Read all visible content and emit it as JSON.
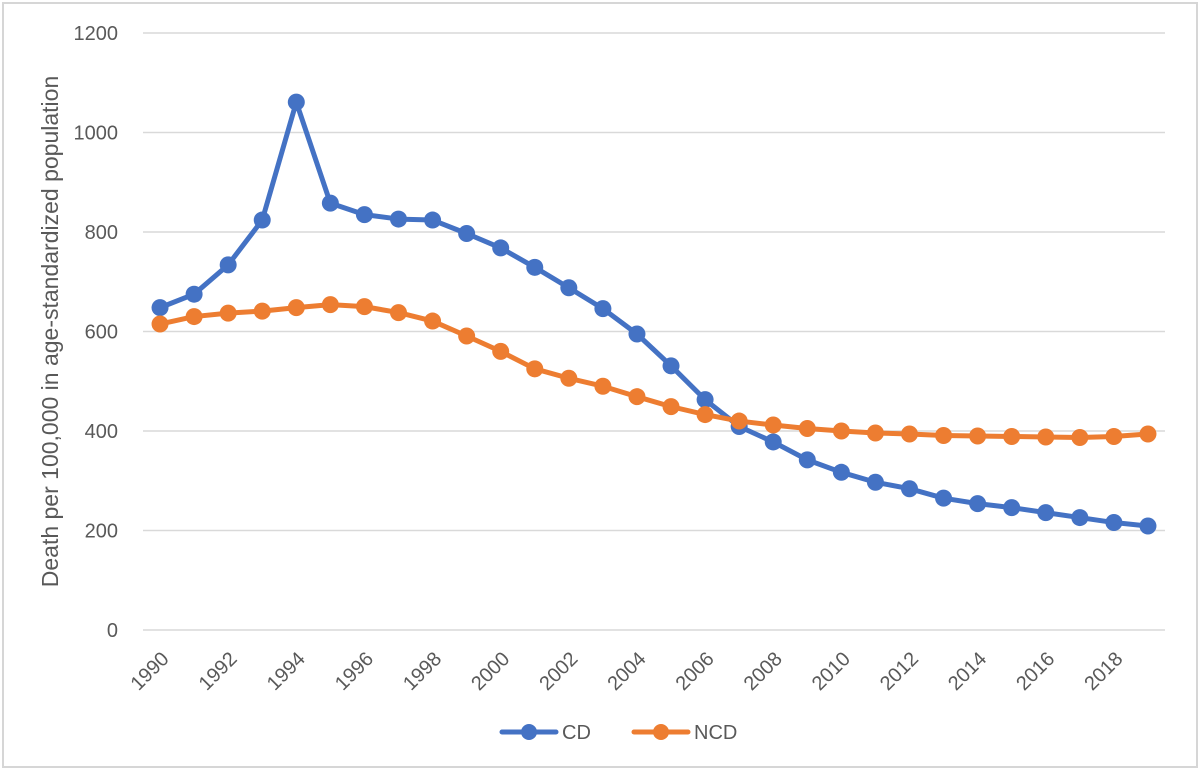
{
  "chart_data": {
    "type": "line",
    "title": "",
    "xlabel": "",
    "ylabel": "Death per 100,000 in age-standardized population",
    "x": [
      1990,
      1991,
      1992,
      1993,
      1994,
      1995,
      1996,
      1997,
      1998,
      1999,
      2000,
      2001,
      2002,
      2003,
      2004,
      2005,
      2006,
      2007,
      2008,
      2009,
      2010,
      2011,
      2012,
      2013,
      2014,
      2015,
      2016,
      2017,
      2018,
      2019
    ],
    "x_tick_labels": [
      "1990",
      "1992",
      "1994",
      "1996",
      "1998",
      "2000",
      "2002",
      "2004",
      "2006",
      "2008",
      "2010",
      "2012",
      "2014",
      "2016",
      "2018"
    ],
    "y_ticks": [
      0,
      200,
      400,
      600,
      800,
      1000,
      1200
    ],
    "ylim": [
      0,
      1200
    ],
    "grid": true,
    "legend_position": "bottom-center",
    "series": [
      {
        "name": "CD",
        "color": "#4472C4",
        "values": [
          648,
          675,
          734,
          824,
          1061,
          858,
          835,
          826,
          824,
          797,
          768,
          729,
          688,
          646,
          595,
          531,
          463,
          409,
          378,
          342,
          317,
          297,
          284,
          265,
          254,
          246,
          236,
          226,
          216,
          209
        ]
      },
      {
        "name": "NCD",
        "color": "#ED7D31",
        "values": [
          615,
          630,
          637,
          641,
          648,
          654,
          650,
          638,
          621,
          591,
          560,
          525,
          506,
          490,
          469,
          449,
          433,
          420,
          412,
          405,
          400,
          396,
          394,
          391,
          390,
          389,
          388,
          387,
          389,
          394
        ]
      }
    ],
    "colors": {
      "tick_text": "#595959",
      "axis_title_text": "#595959",
      "legend_text": "#595959",
      "gridline": "#d9d9d9",
      "axis_line": "#d9d9d9",
      "frame_border": "#d6d6d6",
      "background": "#ffffff"
    }
  }
}
